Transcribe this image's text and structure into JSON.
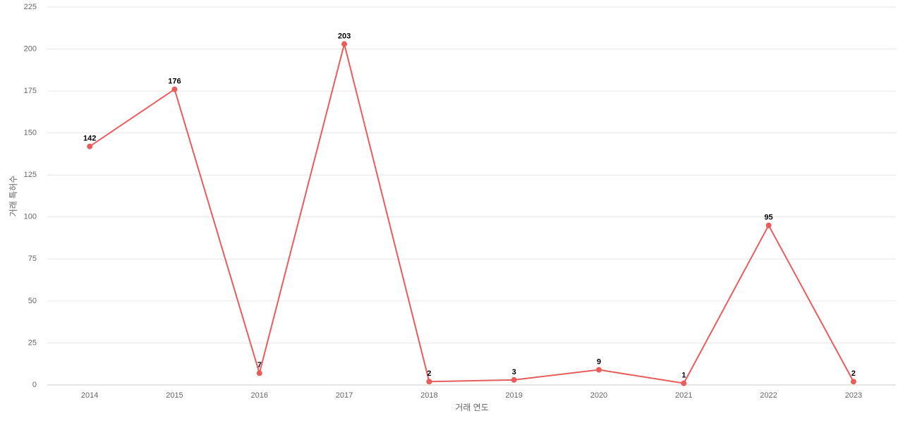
{
  "chart_data": {
    "type": "line",
    "x_label": "거래 연도",
    "y_label": "거래 특허수",
    "categories": [
      "2014",
      "2015",
      "2016",
      "2017",
      "2018",
      "2019",
      "2020",
      "2021",
      "2022",
      "2023"
    ],
    "series": [
      {
        "color": "#e85c5c",
        "values": [
          142,
          176,
          7,
          203,
          2,
          3,
          9,
          1,
          95,
          2
        ]
      }
    ],
    "ylim": [
      0,
      225
    ],
    "yticks": [
      0,
      25,
      50,
      75,
      100,
      125,
      150,
      175,
      200,
      225
    ],
    "grid": true,
    "data_labels": true
  }
}
